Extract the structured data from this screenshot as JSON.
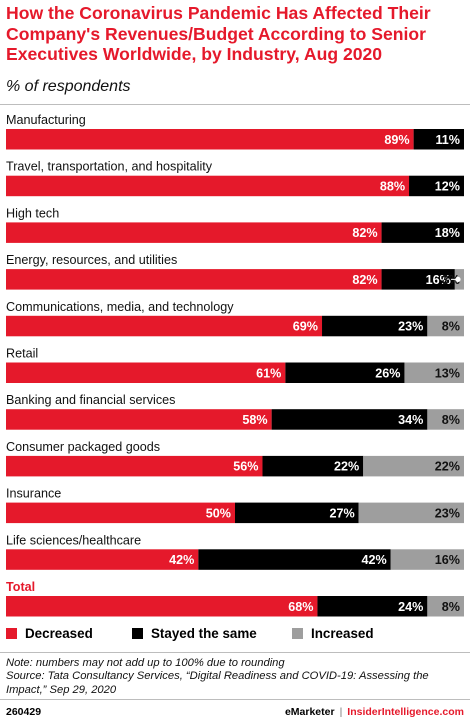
{
  "header": {
    "title": "How the Coronavirus Pandemic Has Affected Their Company's Revenues/Budget According to Senior Executives Worldwide, by Industry, Aug 2020",
    "subtitle": "% of respondents"
  },
  "colors": {
    "decreased": "#e5192b",
    "stayed": "#000000",
    "increased": "#9e9e9e",
    "title": "#e5192b"
  },
  "chart_data": {
    "type": "bar",
    "orientation": "horizontal",
    "stacked": true,
    "title": "How the Coronavirus Pandemic Has Affected Their Company's Revenues/Budget According to Senior Executives Worldwide, by Industry, Aug 2020",
    "subtitle": "% of respondents",
    "categories": [
      "Manufacturing",
      "Travel, transportation, and hospitality",
      "High tech",
      "Energy, resources, and utilities",
      "Communications, media, and technology",
      "Retail",
      "Banking and financial services",
      "Consumer packaged goods",
      "Insurance",
      "Life sciences/healthcare",
      "Total"
    ],
    "series": [
      {
        "name": "Decreased",
        "values": [
          89,
          88,
          82,
          82,
          69,
          61,
          58,
          56,
          50,
          42,
          68
        ]
      },
      {
        "name": "Stayed the same",
        "values": [
          11,
          12,
          18,
          16,
          23,
          26,
          34,
          22,
          27,
          42,
          24
        ]
      },
      {
        "name": "Increased",
        "values": [
          0,
          0,
          0,
          3,
          8,
          13,
          8,
          22,
          23,
          16,
          8
        ]
      }
    ],
    "labels": [
      [
        "89%",
        "11%",
        ""
      ],
      [
        "88%",
        "12%",
        ""
      ],
      [
        "82%",
        "18%",
        ""
      ],
      [
        "82%",
        "16%",
        "3%"
      ],
      [
        "69%",
        "23%",
        "8%"
      ],
      [
        "61%",
        "26%",
        "13%"
      ],
      [
        "58%",
        "34%",
        "8%"
      ],
      [
        "56%",
        "22%",
        "22%"
      ],
      [
        "50%",
        "27%",
        "23%"
      ],
      [
        "42%",
        "42%",
        "16%"
      ],
      [
        "68%",
        "24%",
        "8%"
      ]
    ],
    "xlim": [
      0,
      100
    ],
    "legend_position": "bottom",
    "grid": false
  },
  "legend": {
    "decreased": "Decreased",
    "stayed": "Stayed the same",
    "increased": "Increased"
  },
  "notes": {
    "note": "Note: numbers may not add up to 100% due to rounding",
    "source": "Source: Tata Consultancy Services, “Digital Readiness and COVID-19: Assessing the Impact,” Sep 29, 2020"
  },
  "footer": {
    "chart_id": "260429",
    "brand_em": "eMarketer",
    "separator": "|",
    "brand_ii": "InsiderIntelligence.com"
  }
}
